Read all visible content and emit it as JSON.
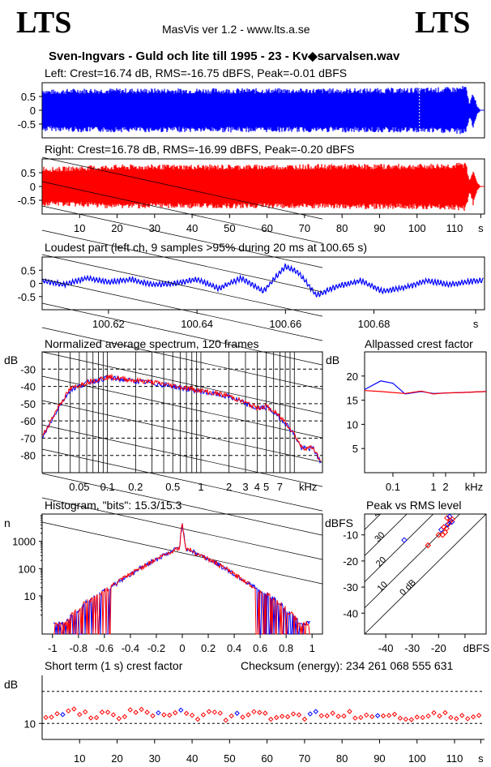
{
  "header": {
    "logo_left": "LTS",
    "logo_right": "LTS",
    "app_title": "MasVis ver 1.2 - www.lts.a.se",
    "file_title": "Sven-Ingvars - Guld och lite till 1995 - 23 - Kv◆sarvalsen.wav"
  },
  "colors": {
    "left": "#0000ff",
    "right": "#ff0000",
    "grid": "#000000"
  },
  "panels": {
    "left": {
      "title": "Left: Crest=16.74 dB, RMS=-16.75 dBFS, Peak=-0.01 dBFS"
    },
    "right": {
      "title": "Right: Crest=16.78 dB, RMS=-16.99 dBFS, Peak=-0.20 dBFS"
    },
    "loudest": {
      "title": "Loudest part (left  ch, 9 samples >95% during 20 ms at 100.65 s)"
    },
    "spectrum": {
      "title": "Normalized average spectrum, 120 frames",
      "ylabel": "dB",
      "xunit": "kHz"
    },
    "allpass": {
      "title": "Allpassed crest factor",
      "ylabel": "dB",
      "xunit": "kHz"
    },
    "histogram": {
      "title": "Histogram, \"bits\": 15.3/15.3",
      "ylabel": "n"
    },
    "peakrms": {
      "title": "Peak vs RMS level",
      "ylabel": "dBFS",
      "xunit": "dBFS"
    },
    "shortcrest": {
      "title": "Short term (1 s) crest factor",
      "ylabel": "dB",
      "checksum": "Checksum (energy):   234 261 068 555 631"
    }
  },
  "chart_data": [
    {
      "type": "area",
      "name": "waveform-left",
      "x_unit": "s",
      "xlim": [
        0,
        118
      ],
      "ylim": [
        -1,
        1
      ],
      "yticks": [
        "0.5",
        "0",
        "-0.5"
      ],
      "ytick_values": [
        0.5,
        0,
        -0.5
      ],
      "envelope_s": [
        0,
        2,
        10,
        20,
        40,
        60,
        80,
        100,
        110,
        113,
        114,
        115,
        116,
        117
      ],
      "envelope_amp": [
        0.8,
        0.75,
        0.8,
        0.8,
        0.8,
        0.8,
        0.8,
        0.82,
        0.85,
        0.9,
        0.25,
        0.7,
        0.15,
        0.0
      ],
      "marker_s": 100.65
    },
    {
      "type": "area",
      "name": "waveform-right",
      "x_unit": "s",
      "xlim": [
        0,
        118
      ],
      "ylim": [
        -1,
        1
      ],
      "yticks": [
        "0.5",
        "0",
        "-0.5"
      ],
      "ytick_values": [
        0.5,
        0,
        -0.5
      ],
      "xticks": [
        "10",
        "20",
        "30",
        "40",
        "50",
        "60",
        "70",
        "80",
        "90",
        "100",
        "110",
        "s"
      ],
      "xtick_values": [
        10,
        20,
        30,
        40,
        50,
        60,
        70,
        80,
        90,
        100,
        110,
        117
      ],
      "envelope_s": [
        0,
        2,
        10,
        20,
        40,
        60,
        80,
        100,
        110,
        113,
        114,
        115,
        116,
        117
      ],
      "envelope_amp": [
        0.75,
        0.7,
        0.75,
        0.8,
        0.8,
        0.8,
        0.82,
        0.82,
        0.85,
        0.9,
        0.2,
        0.7,
        0.15,
        0.0
      ]
    },
    {
      "type": "line",
      "name": "loudest-part",
      "x_unit": "s",
      "xlim": [
        100.605,
        100.705
      ],
      "ylim": [
        -1,
        1
      ],
      "yticks": [
        "0.5",
        "0",
        "-0.5"
      ],
      "ytick_values": [
        0.5,
        0,
        -0.5
      ],
      "xticks": [
        "100.62",
        "100.64",
        "100.66",
        "100.68",
        "s"
      ],
      "xtick_values": [
        100.62,
        100.64,
        100.66,
        100.68,
        100.703
      ],
      "x": [
        100.605,
        100.61,
        100.615,
        100.62,
        100.625,
        100.63,
        100.635,
        100.64,
        100.645,
        100.65,
        100.655,
        100.66,
        100.663,
        100.667,
        100.672,
        100.677,
        100.682,
        100.687,
        100.692,
        100.697,
        100.703
      ],
      "y": [
        0.1,
        -0.05,
        0.2,
        0.05,
        0.15,
        -0.05,
        0.0,
        0.15,
        -0.2,
        0.2,
        -0.3,
        0.65,
        0.4,
        -0.45,
        -0.1,
        0.1,
        -0.3,
        -0.15,
        0.1,
        -0.05,
        0.1
      ]
    },
    {
      "type": "line",
      "name": "average-spectrum",
      "y_unit": "dB",
      "xlim": [
        0.02,
        20
      ],
      "ylim": [
        -90,
        -20
      ],
      "x_scale": "log",
      "yticks": [
        "-30",
        "-40",
        "-50",
        "-60",
        "-70",
        "-80"
      ],
      "ytick_values": [
        -30,
        -40,
        -50,
        -60,
        -70,
        -80
      ],
      "xticks": [
        "0.05",
        "0.1",
        "0.2",
        "0.5",
        "1",
        "2",
        "3",
        "4",
        "5",
        "7",
        "kHz"
      ],
      "xtick_values": [
        0.05,
        0.1,
        0.2,
        0.5,
        1,
        2,
        3,
        4,
        5,
        7,
        14
      ],
      "x": [
        0.02,
        0.03,
        0.04,
        0.06,
        0.1,
        0.2,
        0.3,
        0.5,
        1,
        2,
        3,
        4,
        5,
        6,
        8,
        10,
        12,
        16,
        20
      ],
      "y": [
        -70,
        -52,
        -42,
        -38,
        -35,
        -37,
        -38,
        -40,
        -43,
        -46,
        -50,
        -53,
        -52,
        -55,
        -61,
        -68,
        -76,
        -76,
        -86
      ]
    },
    {
      "type": "line",
      "name": "allpassed-crest",
      "y_unit": "dB",
      "xlim": [
        0.02,
        20
      ],
      "ylim": [
        0,
        25
      ],
      "x_scale": "log",
      "yticks": [
        "20",
        "15",
        "10",
        "5"
      ],
      "ytick_values": [
        20,
        15,
        10,
        5
      ],
      "xticks": [
        "0.1",
        "1",
        "2",
        "kHz"
      ],
      "xtick_values": [
        0.1,
        1,
        2,
        10
      ],
      "series": [
        {
          "x": [
            0.02,
            0.05,
            0.1,
            0.2,
            0.5,
            1,
            2,
            5,
            10,
            20
          ],
          "y": [
            17.2,
            19,
            18.5,
            16.3,
            16.8,
            16.4,
            16.5,
            16.6,
            16.7,
            16.8
          ]
        },
        {
          "x": [
            0.02,
            0.05,
            0.1,
            0.2,
            0.5,
            1,
            2,
            5,
            10,
            20
          ],
          "y": [
            17,
            16.8,
            16.6,
            16.4,
            16.9,
            16.3,
            16.5,
            16.6,
            16.7,
            16.8
          ]
        }
      ]
    },
    {
      "type": "line",
      "name": "histogram",
      "y_scale": "log",
      "xlim": [
        -1.08,
        1.08
      ],
      "ylim": [
        0.4,
        10000
      ],
      "yticks": [
        "1000",
        "100",
        "10"
      ],
      "ytick_values": [
        1000,
        100,
        10
      ],
      "xticks": [
        "-1",
        "-0.8",
        "-0.6",
        "-0.4",
        "-0.2",
        "0",
        "0.2",
        "0.4",
        "0.6",
        "0.8",
        "1"
      ],
      "xtick_values": [
        -1,
        -0.8,
        -0.6,
        -0.4,
        -0.2,
        0,
        0.2,
        0.4,
        0.6,
        0.8,
        1
      ],
      "x": [
        -1.0,
        -0.9,
        -0.8,
        -0.7,
        -0.6,
        -0.5,
        -0.4,
        -0.3,
        -0.2,
        -0.1,
        -0.02,
        0,
        0.02,
        0.1,
        0.2,
        0.3,
        0.4,
        0.5,
        0.6,
        0.7,
        0.8,
        0.9,
        1.0
      ],
      "y": [
        1,
        1,
        3,
        8,
        15,
        30,
        60,
        120,
        220,
        380,
        600,
        4000,
        600,
        380,
        220,
        120,
        60,
        30,
        15,
        8,
        3,
        1,
        1
      ]
    },
    {
      "type": "scatter",
      "name": "peak-vs-rms",
      "xlim": [
        -48,
        -2
      ],
      "ylim": [
        -48,
        -2
      ],
      "yticks": [
        "-10",
        "-20",
        "-30",
        "-40"
      ],
      "ytick_values": [
        -10,
        -20,
        -30,
        -40
      ],
      "xticks": [
        "-40",
        "-30",
        "-20",
        "dBFS"
      ],
      "xtick_values": [
        -40,
        -30,
        -20,
        -10
      ],
      "crest_line_labels": [
        "40",
        "30",
        "20",
        "10",
        "0 dB"
      ],
      "crest_line_values": [
        40,
        30,
        20,
        10,
        0
      ],
      "x": [
        -33,
        -24,
        -20,
        -19,
        -18,
        -17,
        -16.5,
        -16,
        -15.5,
        -15,
        -17.5,
        -16.8,
        -15.8,
        -18.5,
        -14.8
      ],
      "y": [
        -12,
        -14,
        -10,
        -8,
        -7,
        -7.5,
        -6,
        -5.5,
        -4.5,
        -5,
        -9,
        -3.5,
        -3,
        -10,
        -4
      ]
    },
    {
      "type": "scatter",
      "name": "short-term-crest",
      "y_unit": "dB",
      "x_unit": "s",
      "xlim": [
        0,
        118
      ],
      "ylim": [
        5,
        25
      ],
      "yticks": [
        "10"
      ],
      "ytick_values": [
        10
      ],
      "xticks": [
        "10",
        "20",
        "30",
        "40",
        "50",
        "60",
        "70",
        "80",
        "90",
        "100",
        "110",
        "s"
      ],
      "xtick_values": [
        10,
        20,
        30,
        40,
        50,
        60,
        70,
        80,
        90,
        100,
        110,
        117
      ],
      "x": [
        1,
        5,
        9,
        13,
        17,
        21,
        25,
        29,
        33,
        37,
        41,
        45,
        49,
        53,
        57,
        61,
        65,
        69,
        73,
        77,
        81,
        85,
        89,
        93,
        97,
        101,
        105,
        109,
        113,
        117
      ],
      "y": [
        12,
        13,
        14,
        12.5,
        13,
        12,
        14,
        13,
        12,
        13.5,
        12,
        13,
        12,
        12.5,
        13,
        12,
        13,
        12,
        13,
        12.5,
        13,
        12,
        12.5,
        13,
        12,
        12,
        13,
        12.5,
        12,
        13
      ]
    }
  ]
}
